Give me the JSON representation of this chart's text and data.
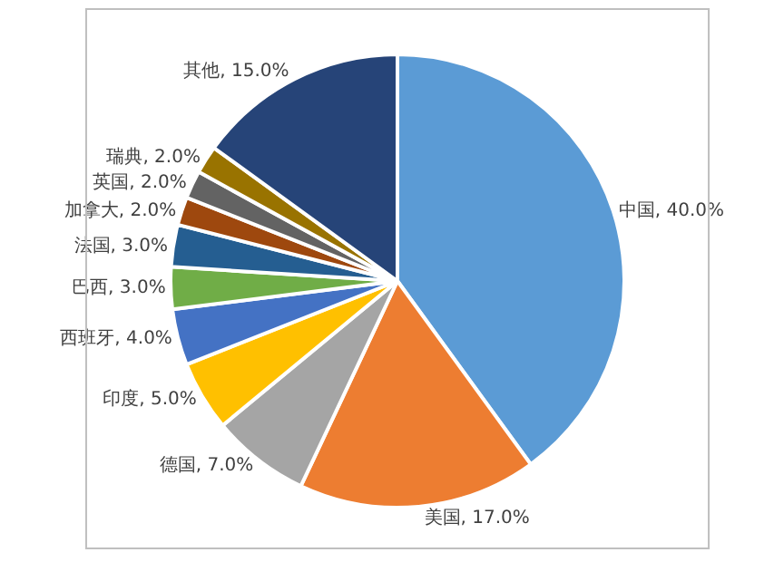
{
  "chart_data": {
    "type": "pie",
    "categories": [
      "中国",
      "美国",
      "德国",
      "印度",
      "西班牙",
      "巴西",
      "法国",
      "加拿大",
      "英国",
      "瑞典",
      "其他"
    ],
    "values": [
      40,
      17,
      7,
      5,
      4,
      3,
      3,
      2,
      2,
      2,
      15
    ],
    "value_labels": [
      "40.0%",
      "17.0%",
      "7.0%",
      "5.0%",
      "4.0%",
      "3.0%",
      "3.0%",
      "2.0%",
      "2.0%",
      "2.0%",
      "15.0%"
    ],
    "colors": [
      "#5b9bd5",
      "#ed7d31",
      "#a5a5a5",
      "#ffc000",
      "#4472c4",
      "#70ad47",
      "#255e91",
      "#9e480e",
      "#636363",
      "#997300",
      "#264478"
    ],
    "legend": false
  }
}
